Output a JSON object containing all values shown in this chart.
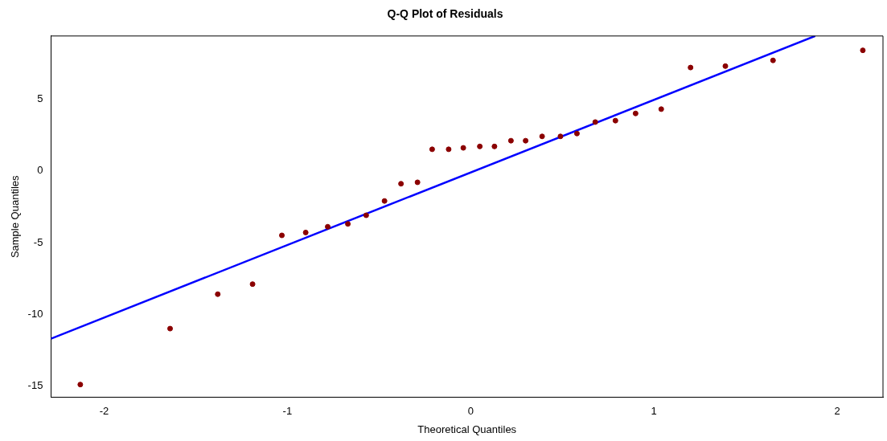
{
  "chart_data": {
    "type": "scatter",
    "title": "Q-Q Plot of Residuals",
    "xlabel": "Theoretical Quantiles",
    "ylabel": "Sample Quantiles",
    "xlim": [
      -2.29,
      2.25
    ],
    "ylim": [
      -15.8,
      9.4
    ],
    "xticks": [
      -2,
      -1,
      0,
      1,
      2
    ],
    "yticks": [
      -15,
      -10,
      -5,
      0,
      5
    ],
    "grid": false,
    "legend": false,
    "marker": "circle",
    "series": [
      {
        "color": "#8b0000",
        "x": [
          -2.13,
          -1.64,
          -1.38,
          -1.19,
          -1.03,
          -0.9,
          -0.78,
          -0.67,
          -0.57,
          -0.47,
          -0.38,
          -0.29,
          -0.21,
          -0.12,
          -0.04,
          0.05,
          0.13,
          0.22,
          0.3,
          0.39,
          0.49,
          0.58,
          0.68,
          0.79,
          0.9,
          1.04,
          1.2,
          1.39,
          1.65,
          2.14
        ],
        "values": [
          -14.9,
          -11.0,
          -8.6,
          -7.9,
          -4.5,
          -4.3,
          -3.9,
          -3.7,
          -3.1,
          -2.1,
          -0.9,
          -0.8,
          1.5,
          1.5,
          1.6,
          1.7,
          1.7,
          2.1,
          2.1,
          2.4,
          2.4,
          2.6,
          3.4,
          3.5,
          4.0,
          4.3,
          7.2,
          7.3,
          7.7,
          8.4
        ]
      },
      {
        "type": "line",
        "color": "#0000ff",
        "x": [
          -2.29,
          1.88
        ],
        "values": [
          -11.7,
          9.4
        ],
        "marker": "none"
      }
    ]
  }
}
